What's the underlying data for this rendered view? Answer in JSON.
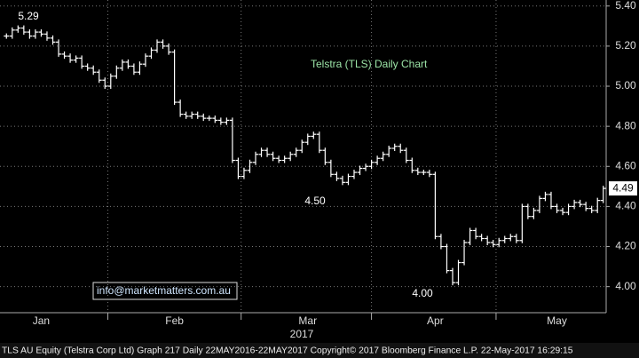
{
  "chart_data": {
    "type": "ohlc",
    "title": "Telstra (TLS) Daily Chart",
    "contact": "info@marketmatters.com.au",
    "footer": "TLS AU Equity (Telstra Corp Ltd) Graph 217  Daily 22MAY2016-22MAY2017 Copyright© 2017 Bloomberg Finance L.P. 22-May-2017 16:29:15",
    "year_label": "2017",
    "last_label": "4.49",
    "color": "#ffffff",
    "grid": true,
    "categories": [
      null,
      null,
      null,
      null,
      null,
      null,
      "Jan",
      null,
      null,
      null,
      null,
      null,
      null,
      null,
      null,
      null,
      null,
      null,
      null,
      null,
      null,
      null,
      null,
      null,
      null,
      null,
      null,
      null,
      null,
      "Feb",
      null,
      null,
      null,
      null,
      null,
      null,
      null,
      null,
      null,
      null,
      null,
      null,
      null,
      null,
      null,
      null,
      null,
      null,
      null,
      null,
      null,
      null,
      "Mar",
      null,
      null,
      null,
      null,
      null,
      null,
      null,
      null,
      null,
      null,
      null,
      null,
      null,
      null,
      null,
      null,
      null,
      null,
      null,
      null,
      null,
      "Apr",
      null,
      null,
      null,
      null,
      null,
      null,
      null,
      null,
      null,
      null,
      null,
      null,
      null,
      null,
      null,
      null,
      null,
      null,
      null,
      null,
      "May",
      null,
      null,
      null,
      null,
      null,
      null,
      null,
      null
    ],
    "values": [
      5.25,
      5.28,
      5.29,
      5.27,
      5.25,
      5.27,
      5.26,
      5.24,
      5.22,
      5.16,
      5.15,
      5.13,
      5.14,
      5.1,
      5.09,
      5.07,
      5.03,
      5.0,
      5.05,
      5.09,
      5.12,
      5.1,
      5.07,
      5.11,
      5.15,
      5.18,
      5.22,
      5.2,
      5.17,
      4.92,
      4.86,
      4.85,
      4.86,
      4.85,
      4.84,
      4.84,
      4.83,
      4.82,
      4.83,
      4.63,
      4.55,
      4.58,
      4.62,
      4.66,
      4.68,
      4.66,
      4.64,
      4.63,
      4.64,
      4.66,
      4.68,
      4.72,
      4.75,
      4.76,
      4.68,
      4.62,
      4.56,
      4.54,
      4.52,
      4.55,
      4.57,
      4.59,
      4.6,
      4.62,
      4.64,
      4.66,
      4.69,
      4.7,
      4.68,
      4.63,
      4.58,
      4.57,
      4.57,
      4.56,
      4.25,
      4.2,
      4.08,
      4.02,
      4.12,
      4.22,
      4.28,
      4.25,
      4.24,
      4.22,
      4.21,
      4.23,
      4.24,
      4.25,
      4.23,
      4.4,
      4.35,
      4.38,
      4.44,
      4.46,
      4.4,
      4.38,
      4.37,
      4.4,
      4.42,
      4.41,
      4.39,
      4.38,
      4.43,
      4.49
    ],
    "annotations": [
      {
        "value": 5.29,
        "label": "5.29"
      },
      {
        "value": 4.5,
        "label": "4.50"
      },
      {
        "value": 4.0,
        "label": "4.00"
      }
    ],
    "ylim": [
      3.87,
      5.43
    ],
    "yticks": [
      {
        "value": 4.0,
        "label": "4.00"
      },
      {
        "value": 4.2,
        "label": "4.20"
      },
      {
        "value": 4.4,
        "label": "4.40"
      },
      {
        "value": 4.6,
        "label": "4.60"
      },
      {
        "value": 4.8,
        "label": "4.80"
      },
      {
        "value": 5.0,
        "label": "5.00"
      },
      {
        "value": 5.2,
        "label": "5.20"
      },
      {
        "value": 5.4,
        "label": "5.40"
      }
    ]
  }
}
